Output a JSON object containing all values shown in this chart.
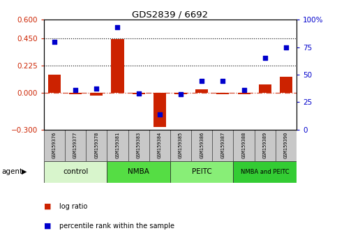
{
  "title": "GDS2839 / 6692",
  "samples": [
    "GSM159376",
    "GSM159377",
    "GSM159378",
    "GSM159381",
    "GSM159383",
    "GSM159384",
    "GSM159385",
    "GSM159386",
    "GSM159387",
    "GSM159388",
    "GSM159389",
    "GSM159390"
  ],
  "log_ratio": [
    0.15,
    -0.01,
    -0.02,
    0.44,
    -0.01,
    -0.28,
    -0.01,
    0.03,
    -0.01,
    -0.01,
    0.07,
    0.13
  ],
  "percentile_rank": [
    80,
    36,
    37,
    93,
    33,
    14,
    32,
    44,
    44,
    36,
    65,
    75
  ],
  "groups": [
    {
      "label": "control",
      "start": 0,
      "end": 3,
      "color": "#d8f5cc"
    },
    {
      "label": "NMBA",
      "start": 3,
      "end": 6,
      "color": "#55dd44"
    },
    {
      "label": "PEITC",
      "start": 6,
      "end": 9,
      "color": "#88ee77"
    },
    {
      "label": "NMBA and PEITC",
      "start": 9,
      "end": 12,
      "color": "#33cc33"
    }
  ],
  "bar_color": "#cc2200",
  "dot_color": "#0000cc",
  "left_ylim": [
    -0.3,
    0.6
  ],
  "right_ylim": [
    0,
    100
  ],
  "left_yticks": [
    -0.3,
    0,
    0.225,
    0.45,
    0.6
  ],
  "right_yticks": [
    0,
    25,
    50,
    75,
    100
  ],
  "hlines": [
    0.45,
    0.225
  ],
  "zero_line": 0.0,
  "agent_label": "agent",
  "legend_bar_label": "log ratio",
  "legend_dot_label": "percentile rank within the sample",
  "bar_color_hex": "#cc2200",
  "dot_color_hex": "#0000cc",
  "sample_box_color": "#c8c8c8",
  "figwidth": 4.83,
  "figheight": 3.54,
  "dpi": 100
}
